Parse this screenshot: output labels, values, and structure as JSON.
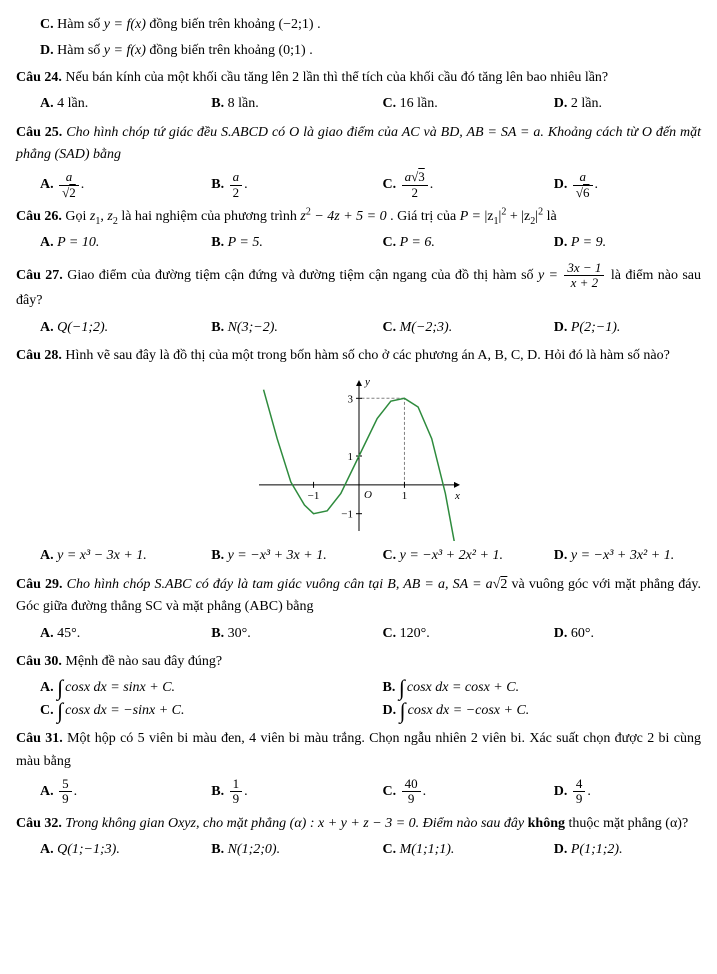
{
  "pre_options": {
    "C": {
      "label": "C.",
      "text_before": "Hàm số ",
      "fx": "y = f(x)",
      "text_mid": " đồng biến trên khoảng ",
      "interval": "(−2;1)",
      "dot": "."
    },
    "D": {
      "label": "D.",
      "text_before": "Hàm số ",
      "fx": "y = f(x)",
      "text_mid": " đồng biến trên khoảng ",
      "interval": "(0;1)",
      "dot": "."
    }
  },
  "q24": {
    "label": "Câu 24.",
    "text": " Nếu bán kính của một khối cầu tăng lên 2 lần thì thể tích của khối cầu đó tăng lên bao nhiêu lần?",
    "A": {
      "l": "A.",
      "t": " 4 lần."
    },
    "B": {
      "l": "B.",
      "t": " 8 lần."
    },
    "C": {
      "l": "C.",
      "t": " 16 lần."
    },
    "D": {
      "l": "D.",
      "t": " 2 lần."
    }
  },
  "q25": {
    "label": "Câu 25.",
    "text": " Cho hình chóp tứ giác đều S.ABCD có O là giao điểm của AC và BD, AB = SA = a. Khoảng cách từ O đến mặt phẳng (SAD) bằng",
    "A": {
      "l": "A.",
      "num": "a",
      "den_sqrt": "2"
    },
    "B": {
      "l": "B.",
      "num": "a",
      "den": "2"
    },
    "C": {
      "l": "C.",
      "num_a": "a",
      "num_sqrt": "3",
      "den": "2"
    },
    "D": {
      "l": "D.",
      "num": "a",
      "den_sqrt": "6"
    }
  },
  "q26": {
    "label": "Câu 26.",
    "t1": " Gọi ",
    "z1": "z",
    "s1": "1",
    "comma": ", ",
    "z2": "z",
    "s2": "2",
    "t2": " là hai nghiệm của phương trình ",
    "eq": {
      "base": "z",
      "sup": "2",
      "rest": " − 4z + 5 = 0"
    },
    "t3": ". Giá trị của ",
    "pexpr": {
      "P": "P = ",
      "b1": "|z",
      "s1": "1",
      "e1": "|",
      "p1": "2",
      "plus": " + ",
      "b2": "|z",
      "s2": "2",
      "e2": "|",
      "p2": "2"
    },
    "t4": " là",
    "A": {
      "l": "A.",
      "t": " P = 10."
    },
    "B": {
      "l": "B.",
      "t": " P = 5."
    },
    "C": {
      "l": "C.",
      "t": " P = 6."
    },
    "D": {
      "l": "D.",
      "t": " P = 9."
    }
  },
  "q27": {
    "label": "Câu 27.",
    "t1": " Giao điểm của đường tiệm cận đứng và đường tiệm cận ngang của đồ thị hàm số ",
    "yeq": "y = ",
    "num": "3x − 1",
    "den": "x + 2",
    "t2": " là điểm nào sau đây?",
    "A": {
      "l": "A.",
      "t": " Q(−1;2)."
    },
    "B": {
      "l": "B.",
      "t": " N(3;−2)."
    },
    "C": {
      "l": "C.",
      "t": " M(−2;3)."
    },
    "D": {
      "l": "D.",
      "t": " P(2;−1)."
    }
  },
  "q28": {
    "label": "Câu 28.",
    "text": " Hình vẽ sau đây là đồ thị của một trong bốn hàm số cho ở các phương án A, B, C, D. Hỏi đó là hàm số nào?",
    "chart": {
      "type": "line",
      "curve_color": "#2e8b3d",
      "axis_color": "#000000",
      "grid_color": "#bfbfbf",
      "background": "#ffffff",
      "dash_color": "#808080",
      "stroke_width": 1.5,
      "xlabel": "x",
      "ylabel": "y",
      "tick_x": [
        "−1",
        "1"
      ],
      "tick_y": [
        "−1",
        "1",
        "3"
      ],
      "x_at": [
        -1,
        1
      ],
      "y_at": [
        -1,
        1,
        3
      ],
      "xlim": [
        -2.2,
        2.2
      ],
      "ylim": [
        -1.6,
        3.6
      ],
      "dash_pts": [
        [
          1,
          0
        ],
        [
          1,
          3
        ],
        [
          0,
          3
        ]
      ],
      "origin_label": "O",
      "curve": [
        [
          -2.1,
          3.3
        ],
        [
          -1.8,
          1.6
        ],
        [
          -1.5,
          0.1
        ],
        [
          -1.2,
          -0.7
        ],
        [
          -1,
          -1
        ],
        [
          -0.7,
          -0.9
        ],
        [
          -0.4,
          -0.3
        ],
        [
          0,
          1
        ],
        [
          0.4,
          2.3
        ],
        [
          0.7,
          2.9
        ],
        [
          1,
          3
        ],
        [
          1.3,
          2.7
        ],
        [
          1.6,
          1.6
        ],
        [
          1.9,
          -0.3
        ],
        [
          2.1,
          -2.0
        ]
      ]
    },
    "A": {
      "l": "A.",
      "t": " y = x³ − 3x + 1."
    },
    "B": {
      "l": "B.",
      "t": " y = −x³ + 3x + 1."
    },
    "C": {
      "l": "C.",
      "t": " y = −x³ + 2x² + 1."
    },
    "D": {
      "l": "D.",
      "t": " y = −x³ + 3x² + 1."
    }
  },
  "q29": {
    "label": "Câu 29.",
    "t1": " Cho hình chóp S.ABC có đáy là tam giác vuông cân tại B, AB = a, SA = a",
    "sqrt2": "2",
    "t2": " và vuông góc với mặt phẳng đáy. Góc giữa đường thẳng SC và mặt phẳng (ABC) bằng",
    "A": {
      "l": "A.",
      "t": " 45°."
    },
    "B": {
      "l": "B.",
      "t": " 30°."
    },
    "C": {
      "l": "C.",
      "t": " 120°."
    },
    "D": {
      "l": "D.",
      "t": " 60°."
    }
  },
  "q30": {
    "label": "Câu 30.",
    "text": " Mệnh đề nào sau đây đúng?",
    "A": {
      "l": "A.",
      "int": "∫",
      "t": "cosx dx = sinx + C."
    },
    "B": {
      "l": "B.",
      "int": "∫",
      "t": "cosx dx = cosx + C."
    },
    "C": {
      "l": "C.",
      "int": "∫",
      "t": "cosx dx = −sinx + C."
    },
    "D": {
      "l": "D.",
      "int": "∫",
      "t": "cosx dx = −cosx + C."
    }
  },
  "q31": {
    "label": "Câu 31.",
    "text": " Một hộp có 5 viên bi màu đen, 4 viên bi màu trắng. Chọn ngẫu nhiên 2 viên bi. Xác suất chọn được 2 bi cùng màu bằng",
    "A": {
      "l": "A.",
      "num": "5",
      "den": "9"
    },
    "B": {
      "l": "B.",
      "num": "1",
      "den": "9"
    },
    "C": {
      "l": "C.",
      "num": "40",
      "den": "9"
    },
    "D": {
      "l": "D.",
      "num": "4",
      "den": "9"
    }
  },
  "q32": {
    "label": "Câu 32.",
    "t1": " Trong không gian Oxyz, cho mặt phẳng (α) : x + y + z − 3 = 0. Điểm nào sau đây ",
    "bold": "không",
    "t2": " thuộc mặt phẳng (α)?",
    "A": {
      "l": "A.",
      "t": " Q(1;−1;3)."
    },
    "B": {
      "l": "B.",
      "t": " N(1;2;0)."
    },
    "C": {
      "l": "C.",
      "t": " M(1;1;1)."
    },
    "D": {
      "l": "D.",
      "t": " P(1;1;2)."
    }
  }
}
